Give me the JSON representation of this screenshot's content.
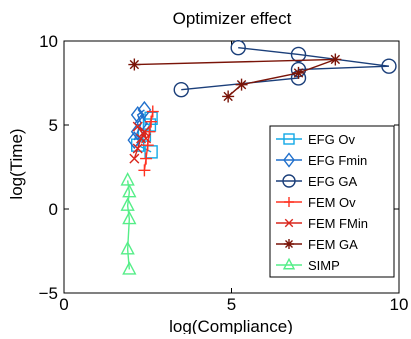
{
  "chart_data": {
    "type": "line",
    "title": "Optimizer effect",
    "xlabel": "log(Compliance)",
    "ylabel": "log(Time)",
    "xlim": [
      0,
      10
    ],
    "ylim": [
      -5,
      10
    ],
    "xticks": [
      0,
      5,
      10
    ],
    "yticks": [
      -5,
      0,
      5,
      10
    ],
    "grid": false,
    "legend_position": "right",
    "series": [
      {
        "name": "EFG Ov",
        "color": "#12a9e6",
        "marker": "square",
        "points": [
          [
            2.6,
            3.4
          ],
          [
            2.2,
            3.8
          ],
          [
            2.4,
            4.4
          ],
          [
            2.55,
            5.0
          ],
          [
            2.6,
            5.4
          ]
        ]
      },
      {
        "name": "EFG Fmin",
        "color": "#1f6fcc",
        "marker": "diamond",
        "points": [
          [
            2.1,
            4.1
          ],
          [
            2.2,
            4.6
          ],
          [
            2.3,
            5.1
          ],
          [
            2.2,
            5.6
          ],
          [
            2.4,
            5.9
          ]
        ]
      },
      {
        "name": "EFG GA",
        "color": "#1b3f7a",
        "marker": "circle",
        "points": [
          [
            3.5,
            7.1
          ],
          [
            7.0,
            7.8
          ],
          [
            7.0,
            8.3
          ],
          [
            9.7,
            8.5
          ],
          [
            7.0,
            9.2
          ],
          [
            5.2,
            9.6
          ]
        ]
      },
      {
        "name": "FEM Ov",
        "color": "#ff3322",
        "marker": "plus",
        "points": [
          [
            2.4,
            2.3
          ],
          [
            2.45,
            3.0
          ],
          [
            2.5,
            3.8
          ],
          [
            2.55,
            4.6
          ],
          [
            2.6,
            5.2
          ],
          [
            2.65,
            5.8
          ]
        ]
      },
      {
        "name": "FEM FMin",
        "color": "#d9261c",
        "marker": "x",
        "points": [
          [
            2.1,
            3.0
          ],
          [
            2.2,
            3.6
          ],
          [
            2.3,
            4.2
          ],
          [
            2.4,
            4.6
          ],
          [
            2.45,
            4.2
          ],
          [
            2.2,
            4.9
          ]
        ]
      },
      {
        "name": "FEM GA",
        "color": "#7a1408",
        "marker": "star",
        "points": [
          [
            2.1,
            8.6
          ],
          [
            8.1,
            8.9
          ],
          [
            7.0,
            8.1
          ],
          [
            5.3,
            7.4
          ],
          [
            4.9,
            6.7
          ]
        ]
      },
      {
        "name": "SIMP",
        "color": "#55ee88",
        "marker": "triangle",
        "points": [
          [
            1.95,
            -3.6
          ],
          [
            1.9,
            -2.4
          ],
          [
            1.95,
            -0.6
          ],
          [
            1.9,
            0.2
          ],
          [
            1.95,
            1.0
          ],
          [
            1.9,
            1.7
          ]
        ]
      }
    ]
  }
}
